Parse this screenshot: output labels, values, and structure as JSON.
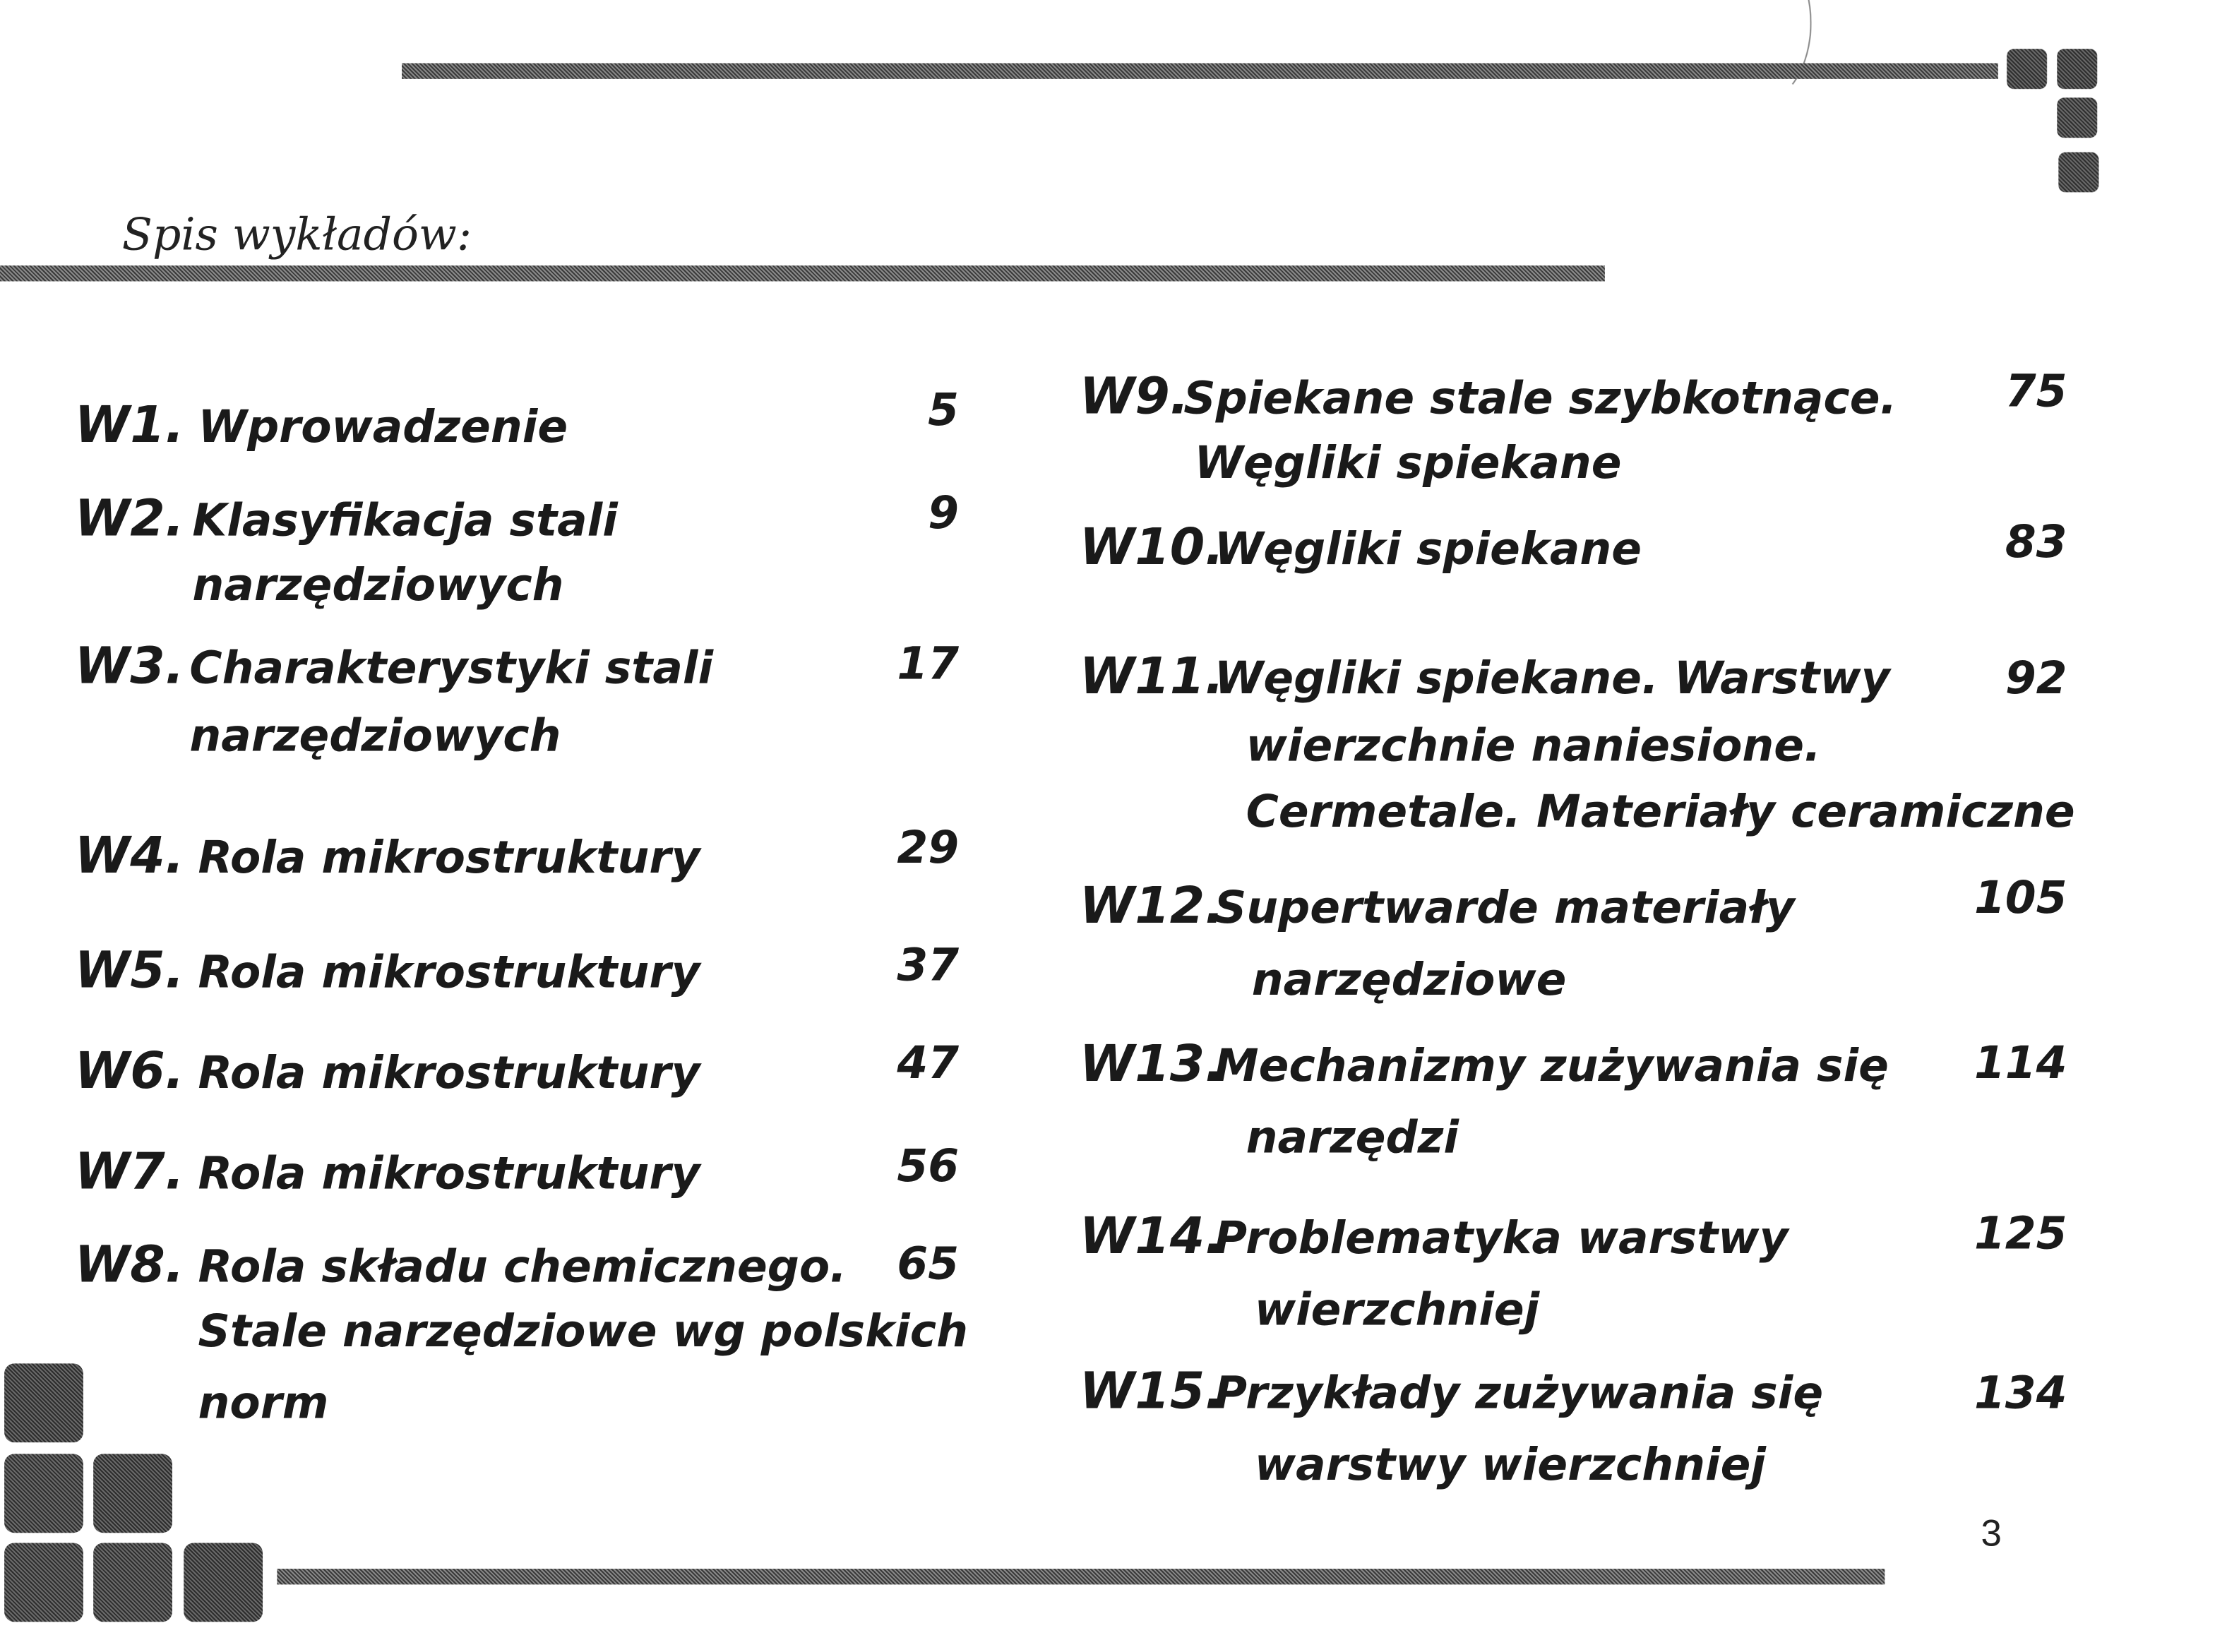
{
  "heading": "Spis wykładów:",
  "page_number": "3",
  "left_entries": [
    {
      "code": "W1.",
      "lines": [
        "Wprowadzenie"
      ],
      "page": "5"
    },
    {
      "code": "W2.",
      "lines": [
        "Klasyfikacja stali",
        "narzędziowych"
      ],
      "page": "9"
    },
    {
      "code": "W3.",
      "lines": [
        "Charakterystyki stali",
        "narzędziowych"
      ],
      "page": "17"
    },
    {
      "code": "W4.",
      "lines": [
        "Rola mikrostruktury"
      ],
      "page": "29"
    },
    {
      "code": "W5.",
      "lines": [
        "Rola mikrostruktury"
      ],
      "page": "37"
    },
    {
      "code": "W6.",
      "lines": [
        "Rola mikrostruktury"
      ],
      "page": "47"
    },
    {
      "code": "W7.",
      "lines": [
        "Rola mikrostruktury"
      ],
      "page": "56"
    },
    {
      "code": "W8.",
      "lines": [
        "Rola składu chemicznego.",
        "Stale narzędziowe wg polskich",
        "norm"
      ],
      "page": "65"
    }
  ],
  "right_entries": [
    {
      "code": "W9.",
      "lines": [
        "Spiekane stale szybkotnące.",
        "Węgliki spiekane"
      ],
      "page": "75"
    },
    {
      "code": "W10.",
      "lines": [
        "Węgliki spiekane"
      ],
      "page": "83"
    },
    {
      "code": "W11.",
      "lines": [
        "Węgliki spiekane. Warstwy",
        "wierzchnie naniesione.",
        "Cermetale. Materiały ceramiczne"
      ],
      "page": "92"
    },
    {
      "code": "W12.",
      "lines": [
        "Supertwarde materiały",
        "narzędziowe"
      ],
      "page": "105"
    },
    {
      "code": "W13.",
      "lines": [
        "Mechanizmy zużywania się",
        "narzędzi"
      ],
      "page": "114"
    },
    {
      "code": "W14.",
      "lines": [
        "Problematyka warstwy",
        "wierzchniej"
      ],
      "page": "125"
    },
    {
      "code": "W15.",
      "lines": [
        "Przykłady zużywania się",
        "warstwy wierzchniej"
      ],
      "page": "134"
    }
  ]
}
